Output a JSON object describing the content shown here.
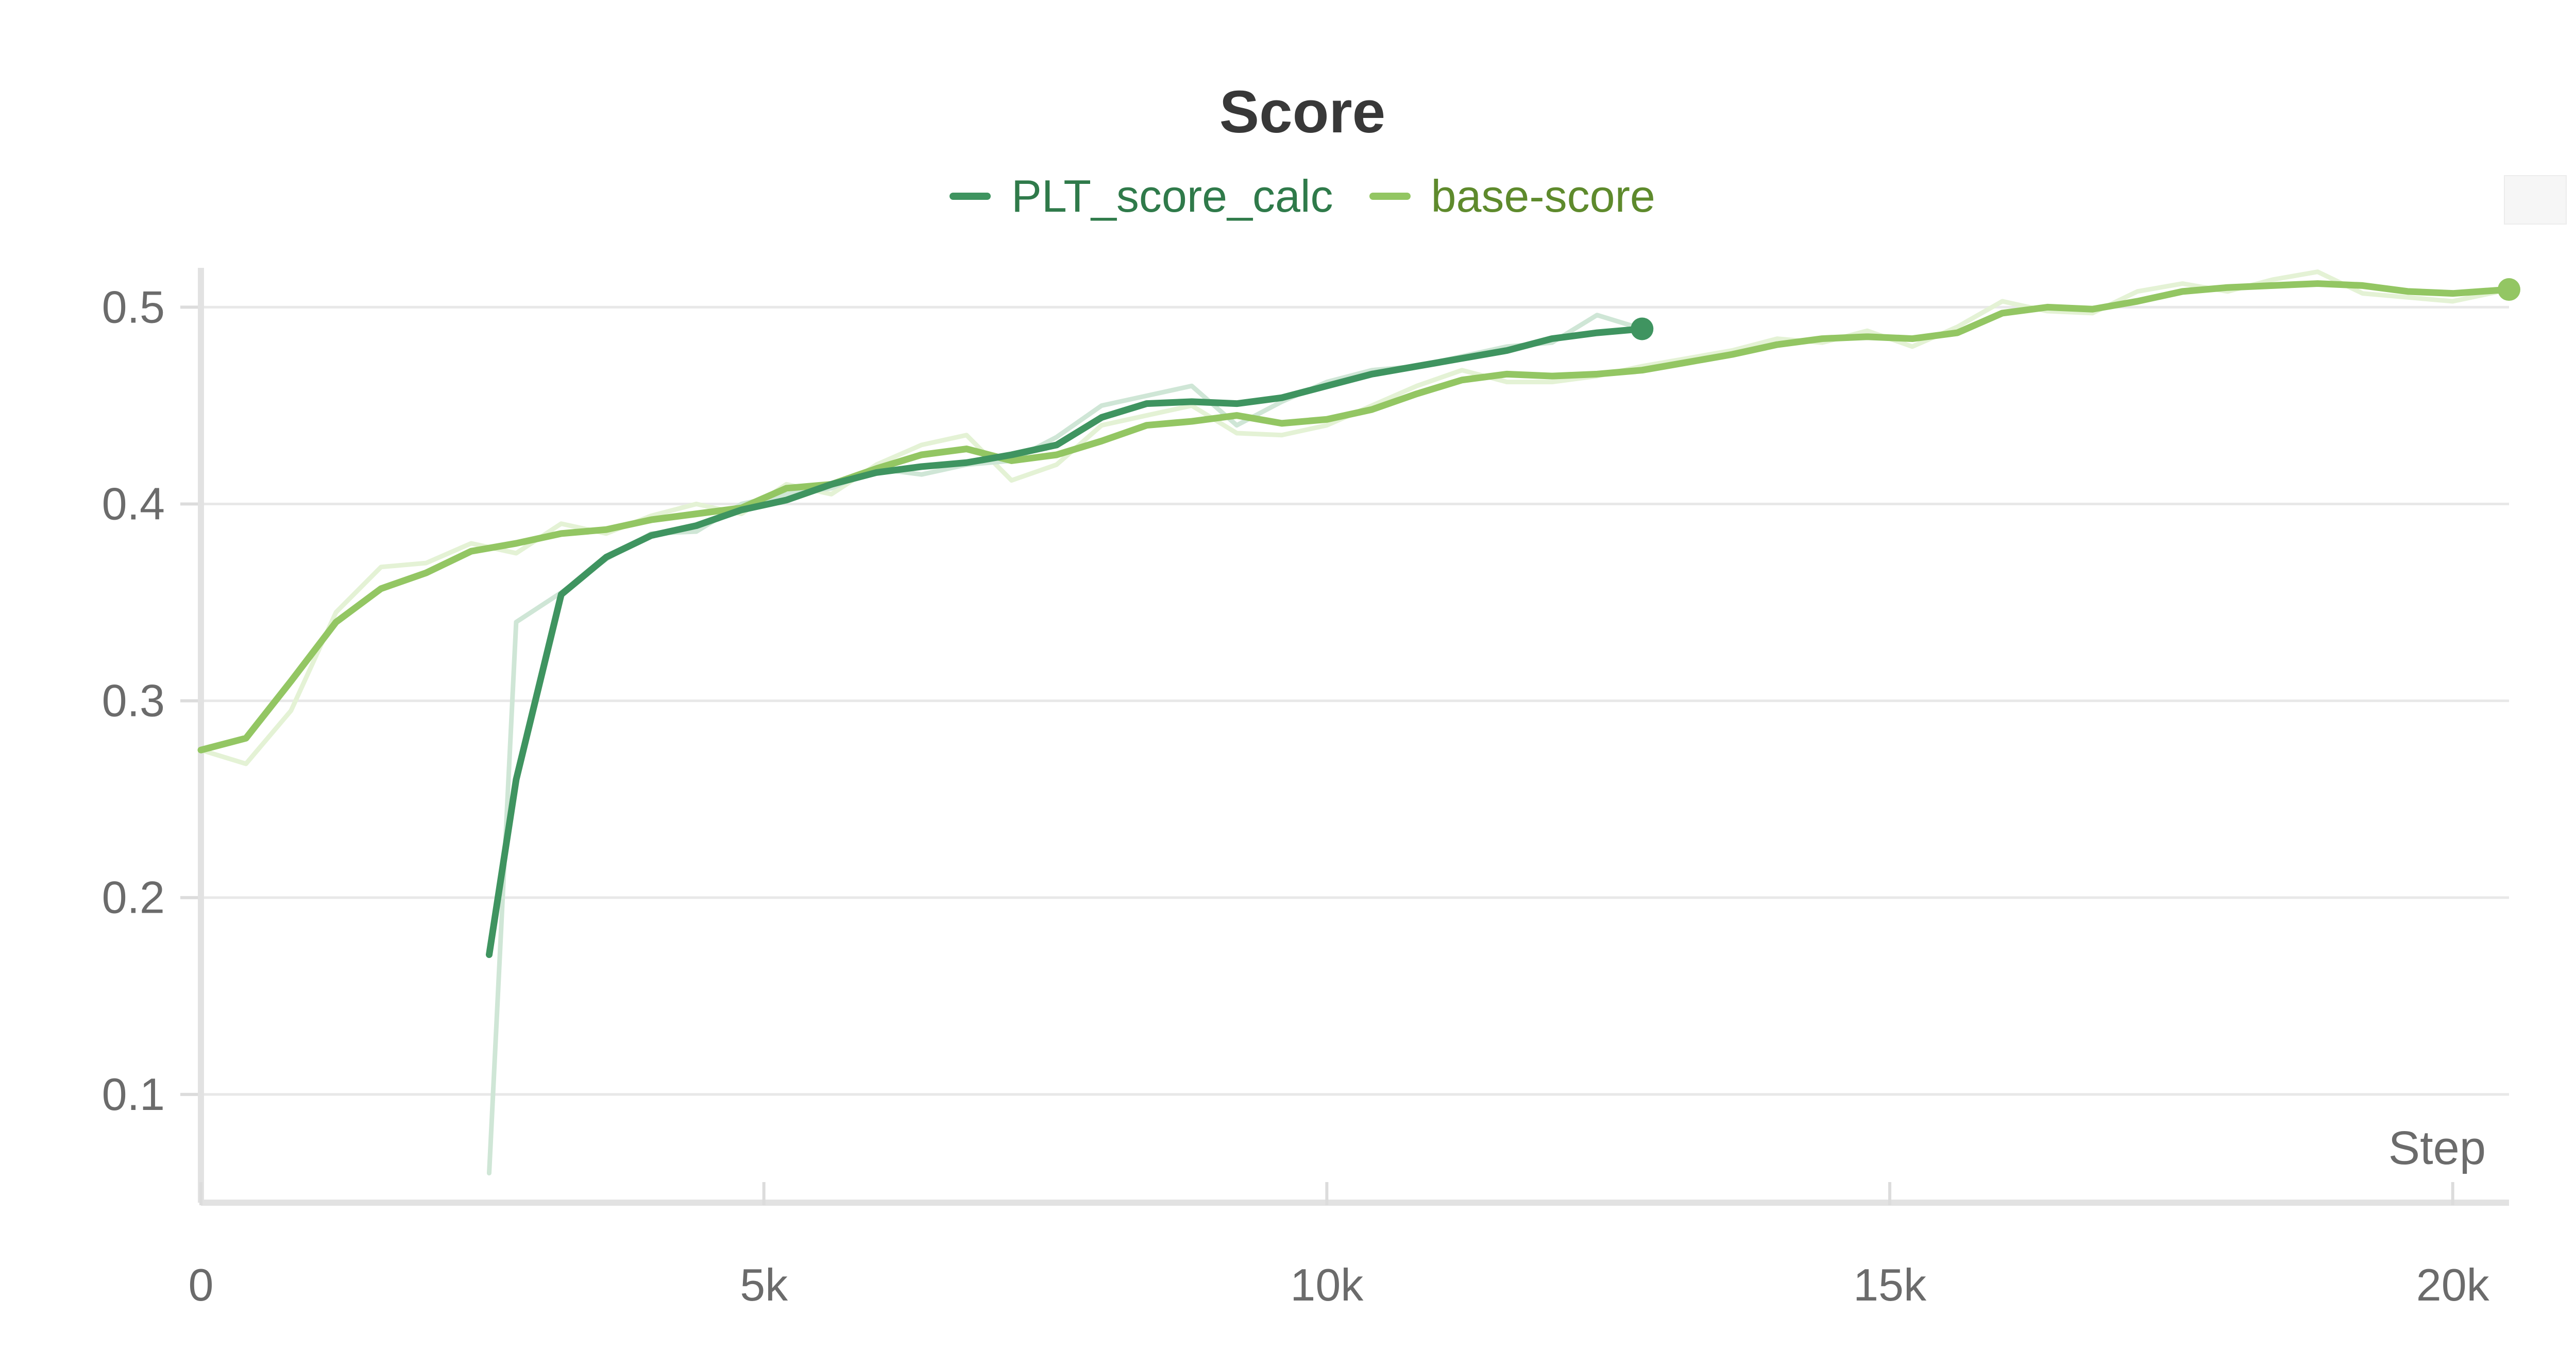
{
  "chart_data": {
    "type": "line",
    "title": "Score",
    "xlabel": "Step",
    "ylabel": "",
    "xlim": [
      0,
      20500
    ],
    "ylim": [
      0.045,
      0.52
    ],
    "x_ticks": [
      0,
      5000,
      10000,
      15000,
      20000
    ],
    "x_tick_labels": [
      "0",
      "5k",
      "10k",
      "15k",
      "20k"
    ],
    "y_ticks": [
      0.1,
      0.2,
      0.3,
      0.4,
      0.5
    ],
    "y_tick_labels": [
      "0.1",
      "0.2",
      "0.3",
      "0.4",
      "0.5"
    ],
    "grid": true,
    "legend_position": "top-center",
    "series": [
      {
        "name": "PLT_score_calc",
        "color": "#3f9460",
        "raw_color": "#cfe6d6",
        "x": [
          2560,
          2800,
          3200,
          3600,
          4000,
          4400,
          4800,
          5200,
          5600,
          6000,
          6400,
          6800,
          7200,
          7600,
          8000,
          8400,
          8800,
          9200,
          9600,
          10000,
          10400,
          10800,
          11200,
          11600,
          12000,
          12400,
          12800
        ],
        "values": [
          0.171,
          0.26,
          0.354,
          0.373,
          0.384,
          0.389,
          0.397,
          0.402,
          0.41,
          0.416,
          0.419,
          0.421,
          0.425,
          0.43,
          0.444,
          0.451,
          0.452,
          0.451,
          0.454,
          0.46,
          0.466,
          0.47,
          0.474,
          0.478,
          0.484,
          0.487,
          0.489
        ],
        "raw_values": [
          0.06,
          0.34,
          0.355,
          0.372,
          0.385,
          0.386,
          0.4,
          0.405,
          0.408,
          0.418,
          0.415,
          0.42,
          0.422,
          0.434,
          0.45,
          0.455,
          0.46,
          0.44,
          0.452,
          0.462,
          0.468,
          0.47,
          0.475,
          0.48,
          0.482,
          0.496,
          0.489
        ],
        "last_point": 0.489
      },
      {
        "name": "base-score",
        "color": "#93c663",
        "raw_color": "#e4f2d5",
        "x": [
          0,
          400,
          800,
          1200,
          1600,
          2000,
          2400,
          2800,
          3200,
          3600,
          4000,
          4400,
          4800,
          5200,
          5600,
          6000,
          6400,
          6800,
          7200,
          7600,
          8000,
          8400,
          8800,
          9200,
          9600,
          10000,
          10400,
          10800,
          11200,
          11600,
          12000,
          12400,
          12800,
          13200,
          13600,
          14000,
          14400,
          14800,
          15200,
          15600,
          16000,
          16400,
          16800,
          17200,
          17600,
          18000,
          18400,
          18800,
          19200,
          19600,
          20000,
          20500
        ],
        "values": [
          0.275,
          0.281,
          0.31,
          0.34,
          0.357,
          0.365,
          0.376,
          0.38,
          0.385,
          0.387,
          0.392,
          0.395,
          0.398,
          0.408,
          0.41,
          0.418,
          0.425,
          0.428,
          0.422,
          0.425,
          0.432,
          0.44,
          0.442,
          0.445,
          0.441,
          0.443,
          0.448,
          0.456,
          0.463,
          0.466,
          0.465,
          0.466,
          0.468,
          0.472,
          0.476,
          0.481,
          0.484,
          0.485,
          0.484,
          0.487,
          0.497,
          0.5,
          0.499,
          0.503,
          0.508,
          0.51,
          0.511,
          0.512,
          0.511,
          0.508,
          0.507,
          0.509
        ],
        "raw_values": [
          0.275,
          0.268,
          0.295,
          0.345,
          0.368,
          0.37,
          0.38,
          0.375,
          0.39,
          0.385,
          0.394,
          0.4,
          0.395,
          0.41,
          0.405,
          0.42,
          0.43,
          0.435,
          0.412,
          0.42,
          0.44,
          0.445,
          0.45,
          0.436,
          0.435,
          0.44,
          0.45,
          0.46,
          0.468,
          0.462,
          0.462,
          0.465,
          0.47,
          0.474,
          0.478,
          0.484,
          0.482,
          0.488,
          0.48,
          0.49,
          0.503,
          0.498,
          0.497,
          0.508,
          0.512,
          0.508,
          0.514,
          0.518,
          0.507,
          0.505,
          0.503,
          0.509
        ],
        "last_point": 0.509
      }
    ]
  }
}
